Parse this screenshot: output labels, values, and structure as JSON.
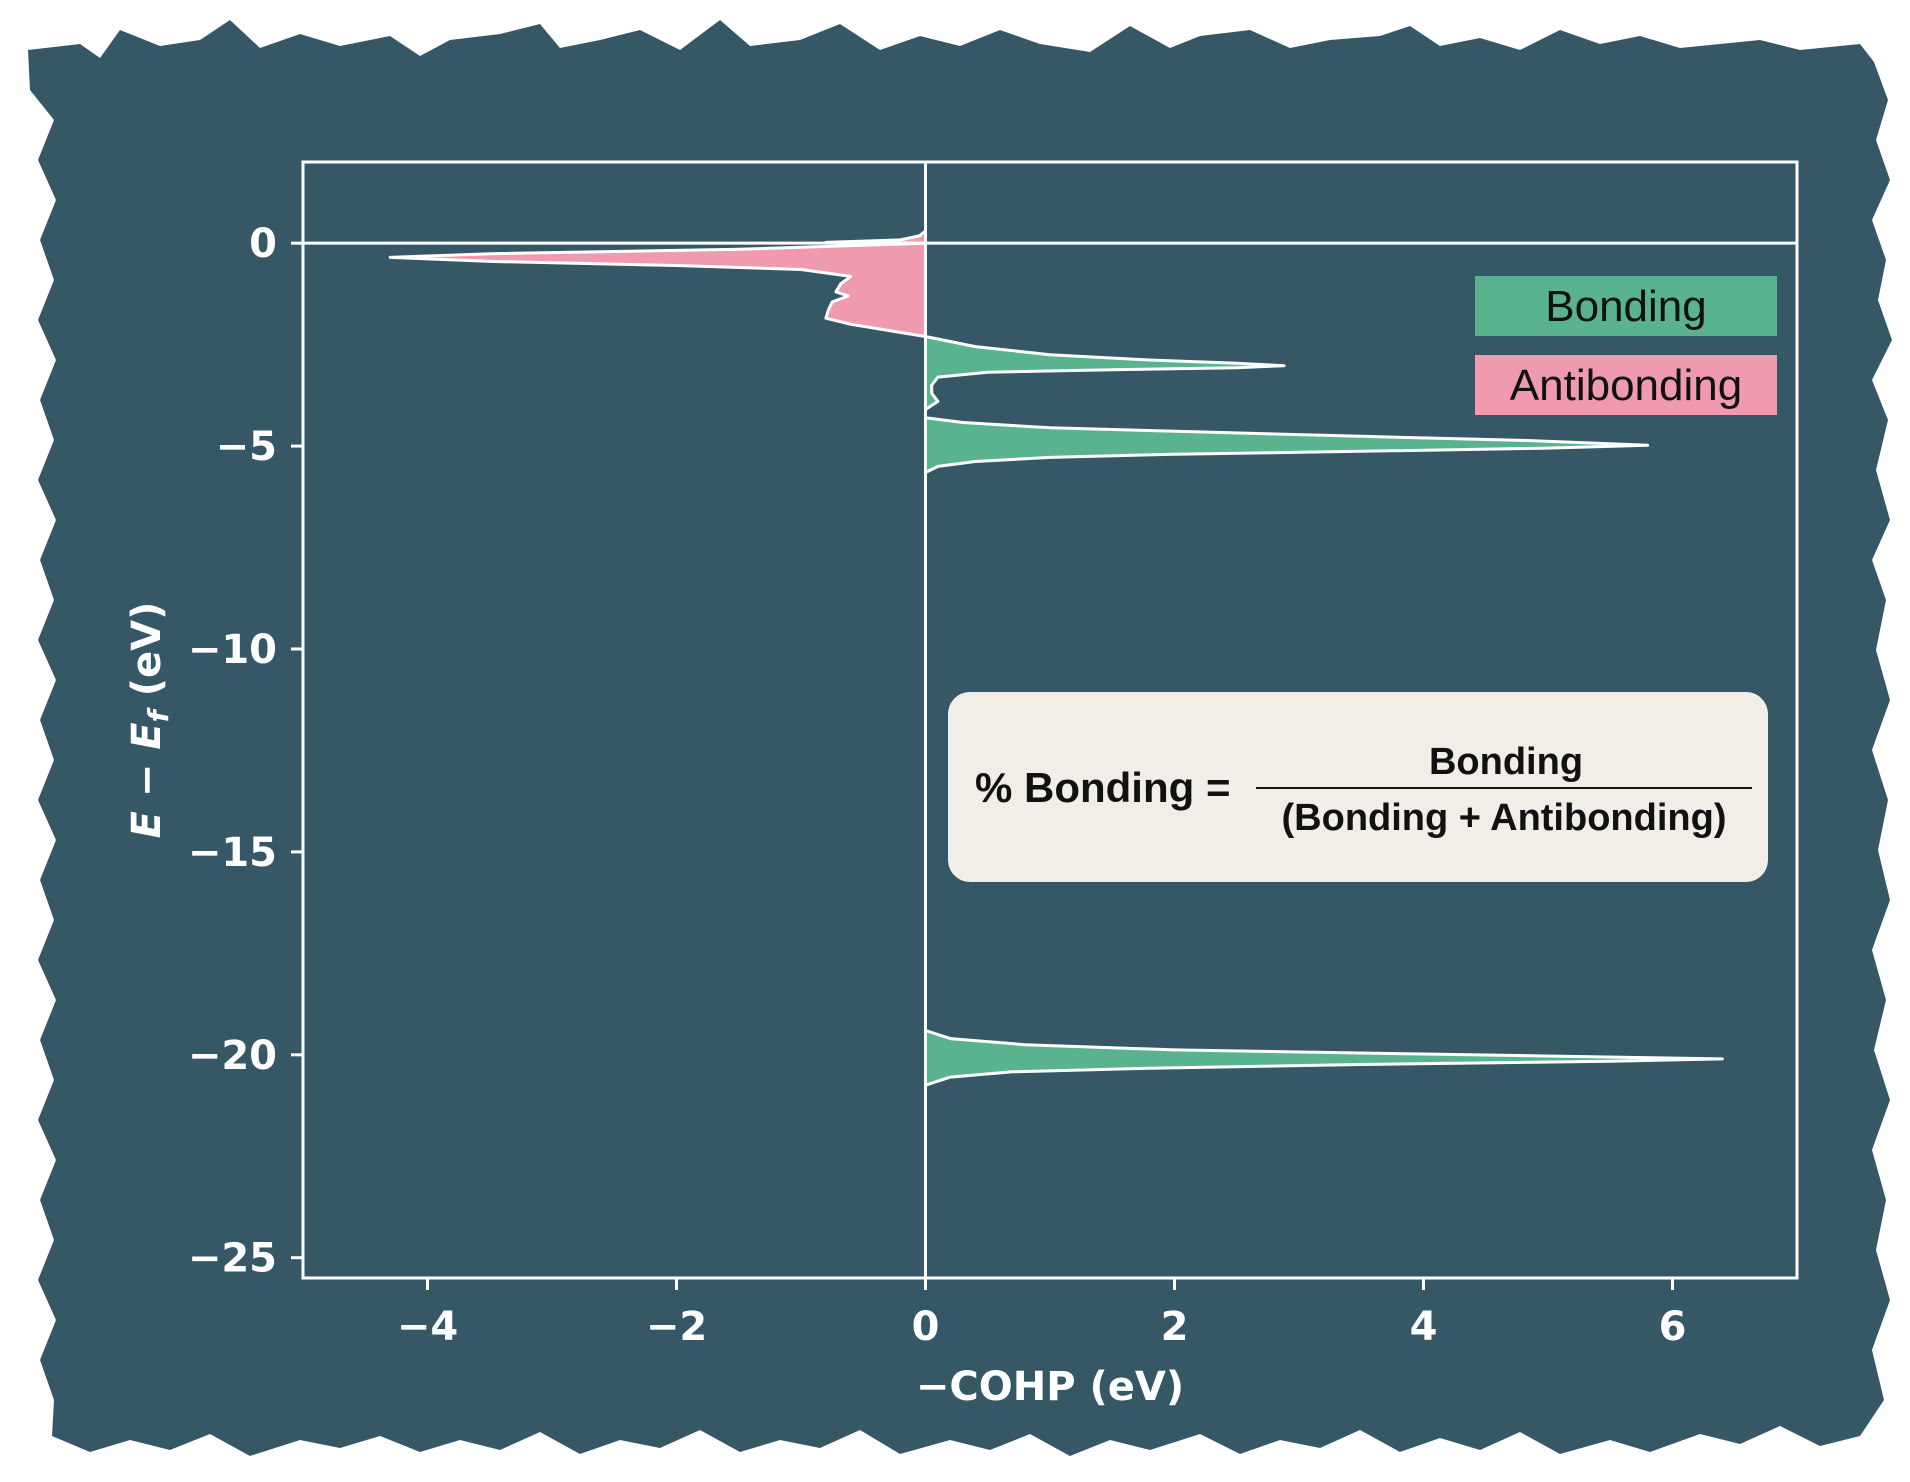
{
  "chart_data": {
    "type": "area",
    "orientation": "horizontal",
    "xlabel": "−COHP (eV)",
    "ylabel_parts": {
      "e": "E",
      "sep": " − ",
      "ef": "E",
      "sub": "f",
      "unit": " (eV)"
    },
    "xlim": [
      -5,
      7
    ],
    "ylim": [
      -25.5,
      2
    ],
    "xticks": [
      -4,
      -2,
      0,
      2,
      4,
      6
    ],
    "xtick_labels": [
      "−4",
      "−2",
      "0",
      "2",
      "4",
      "6"
    ],
    "yticks": [
      0,
      -5,
      -10,
      -15,
      -20,
      -25
    ],
    "ytick_labels": [
      "0",
      "−5",
      "−10",
      "−15",
      "−20",
      "−25"
    ],
    "fermi_level": 0,
    "grid": false,
    "legend_position": "top-right",
    "series": [
      {
        "name": "Bonding",
        "color": "#5ab38f",
        "points": [
          [
            0.0,
            -2.3
          ],
          [
            0.4,
            -2.55
          ],
          [
            1.0,
            -2.75
          ],
          [
            1.8,
            -2.88
          ],
          [
            2.5,
            -2.96
          ],
          [
            2.88,
            -3.02
          ],
          [
            2.5,
            -3.07
          ],
          [
            1.5,
            -3.12
          ],
          [
            0.5,
            -3.18
          ],
          [
            0.1,
            -3.3
          ],
          [
            0.05,
            -3.5
          ],
          [
            0.05,
            -3.7
          ],
          [
            0.1,
            -3.9
          ],
          [
            0.0,
            -4.1
          ],
          [
            0.0,
            -4.3
          ],
          [
            0.3,
            -4.42
          ],
          [
            1.0,
            -4.55
          ],
          [
            2.2,
            -4.65
          ],
          [
            3.5,
            -4.76
          ],
          [
            4.8,
            -4.86
          ],
          [
            5.8,
            -4.98
          ],
          [
            5.0,
            -5.05
          ],
          [
            3.5,
            -5.13
          ],
          [
            2.0,
            -5.2
          ],
          [
            1.0,
            -5.28
          ],
          [
            0.4,
            -5.38
          ],
          [
            0.1,
            -5.5
          ],
          [
            0.0,
            -5.65
          ],
          [
            0.0,
            -19.4
          ],
          [
            0.2,
            -19.6
          ],
          [
            0.8,
            -19.75
          ],
          [
            2.0,
            -19.88
          ],
          [
            4.0,
            -19.98
          ],
          [
            6.4,
            -20.1
          ],
          [
            5.5,
            -20.16
          ],
          [
            3.5,
            -20.24
          ],
          [
            1.8,
            -20.33
          ],
          [
            0.7,
            -20.42
          ],
          [
            0.2,
            -20.55
          ],
          [
            0.0,
            -20.75
          ]
        ]
      },
      {
        "name": "Antibonding",
        "color": "#f09ab0",
        "points": [
          [
            0.0,
            0.3
          ],
          [
            -0.05,
            0.18
          ],
          [
            -0.2,
            0.08
          ],
          [
            -0.8,
            0.02
          ],
          [
            0.0,
            0.0
          ],
          [
            0.0,
            0.0
          ],
          [
            -1.5,
            -0.15
          ],
          [
            -3.5,
            -0.26
          ],
          [
            -4.3,
            -0.35
          ],
          [
            -3.5,
            -0.45
          ],
          [
            -2.0,
            -0.55
          ],
          [
            -1.0,
            -0.65
          ],
          [
            -0.6,
            -0.82
          ],
          [
            -0.68,
            -1.0
          ],
          [
            -0.72,
            -1.2
          ],
          [
            -0.62,
            -1.3
          ],
          [
            -0.75,
            -1.45
          ],
          [
            -0.78,
            -1.65
          ],
          [
            -0.8,
            -1.85
          ],
          [
            -0.6,
            -2.0
          ],
          [
            -0.3,
            -2.15
          ],
          [
            -0.1,
            -2.25
          ],
          [
            0.0,
            -2.3
          ]
        ]
      }
    ],
    "legend": [
      {
        "label": "Bonding",
        "color": "#5ab38f"
      },
      {
        "label": "Antibonding",
        "color": "#f09ab0"
      }
    ],
    "annotation": {
      "lhs": "% Bonding =",
      "numerator": "Bonding",
      "denominator": "(Bonding + Antibonding)"
    }
  },
  "colors": {
    "background": "#365766",
    "axes": "#ffffff",
    "annotation_box": "#f1eee7"
  }
}
